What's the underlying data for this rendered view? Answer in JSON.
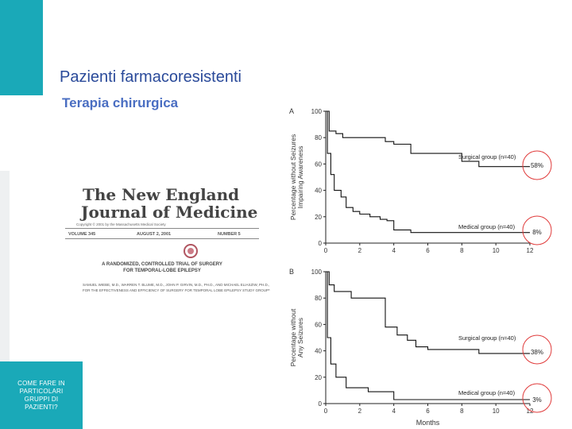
{
  "slide": {
    "title": "Pazienti farmacoresistenti",
    "subtitle": "Terapia chirurgica",
    "side_note": "COME FARE IN PARTICOLARI GRUPPI DI PAZIENTI?",
    "colors": {
      "accent": "#1aa9b8",
      "title": "#2a4a9a",
      "subtitle": "#4a6ec2",
      "circle": "#e03a3a"
    }
  },
  "article": {
    "masthead_line1": "The New England",
    "masthead_line2": "Journal of Medicine",
    "copyright": "Copyright © 2001 by the Massachusetts Medical Society",
    "volume": "VOLUME 345",
    "date": "AUGUST 2, 2001",
    "number": "NUMBER 5",
    "headline_1": "A RANDOMIZED, CONTROLLED TRIAL OF SURGERY",
    "headline_2": "FOR TEMPORAL-LOBE EPILEPSY",
    "authors_1": "SAMUEL WIEBE, M.D., WARREN T. BLUME, M.D., JOHN P. GIRVIN, M.D., PH.D., AND MICHAEL ELIASZIW, PH.D.,",
    "authors_2": "FOR THE EFFECTIVENESS AND EFFICIENCY OF SURGERY FOR TEMPORAL LOBE EPILEPSY STUDY GROUP*"
  },
  "chart_data": [
    {
      "type": "line",
      "panel_label": "A",
      "ylabel_line1": "Percentage without Seizures",
      "ylabel_line2": "Impairing Awareness",
      "xlabel": "",
      "xlim": [
        0,
        12
      ],
      "ylim": [
        0,
        100
      ],
      "x_ticks": [
        "0",
        "2",
        "4",
        "6",
        "8",
        "10",
        "12"
      ],
      "y_ticks": [
        "0",
        "20",
        "40",
        "60",
        "80",
        "100"
      ],
      "series": [
        {
          "name": "Surgical group (n=40)",
          "end_label": "58%",
          "x": [
            0,
            0.2,
            0.2,
            0.6,
            0.6,
            1.0,
            1.0,
            3.5,
            3.5,
            4.0,
            4.0,
            5.0,
            5.0,
            8.0,
            8.0,
            9.0,
            9.0,
            12
          ],
          "y": [
            100,
            100,
            85,
            85,
            83,
            83,
            80,
            80,
            77,
            77,
            75,
            75,
            68,
            68,
            62,
            62,
            58,
            58
          ]
        },
        {
          "name": "Medical group (n=40)",
          "end_label": "8%",
          "x": [
            0,
            0.1,
            0.1,
            0.3,
            0.3,
            0.5,
            0.5,
            0.9,
            0.9,
            1.2,
            1.2,
            1.6,
            1.6,
            2.0,
            2.0,
            2.6,
            2.6,
            3.2,
            3.2,
            3.6,
            3.6,
            4.0,
            4.0,
            5.0,
            5.0,
            12
          ],
          "y": [
            100,
            100,
            68,
            68,
            52,
            52,
            40,
            40,
            35,
            35,
            27,
            27,
            24,
            24,
            22,
            22,
            20,
            20,
            18,
            18,
            17,
            17,
            10,
            10,
            8,
            8
          ]
        }
      ]
    },
    {
      "type": "line",
      "panel_label": "B",
      "ylabel_line1": "Percentage without",
      "ylabel_line2": "Any Seizures",
      "xlabel": "Months",
      "xlim": [
        0,
        12
      ],
      "ylim": [
        0,
        100
      ],
      "x_ticks": [
        "0",
        "2",
        "4",
        "6",
        "8",
        "10",
        "12"
      ],
      "y_ticks": [
        "0",
        "20",
        "40",
        "60",
        "80",
        "100"
      ],
      "series": [
        {
          "name": "Surgical group (n=40)",
          "end_label": "38%",
          "x": [
            0,
            0.2,
            0.2,
            0.5,
            0.5,
            1.5,
            1.5,
            3.5,
            3.5,
            4.2,
            4.2,
            4.8,
            4.8,
            5.3,
            5.3,
            6.0,
            6.0,
            9.0,
            9.0,
            12
          ],
          "y": [
            100,
            100,
            90,
            90,
            85,
            85,
            80,
            80,
            58,
            58,
            52,
            52,
            48,
            48,
            43,
            43,
            41,
            41,
            38,
            38
          ]
        },
        {
          "name": "Medical group (n=40)",
          "end_label": "3%",
          "x": [
            0,
            0.1,
            0.1,
            0.3,
            0.3,
            0.6,
            0.6,
            1.2,
            1.2,
            2.5,
            2.5,
            4.0,
            4.0,
            12
          ],
          "y": [
            100,
            100,
            50,
            50,
            30,
            30,
            20,
            20,
            12,
            12,
            9,
            9,
            3,
            3
          ]
        }
      ]
    }
  ]
}
